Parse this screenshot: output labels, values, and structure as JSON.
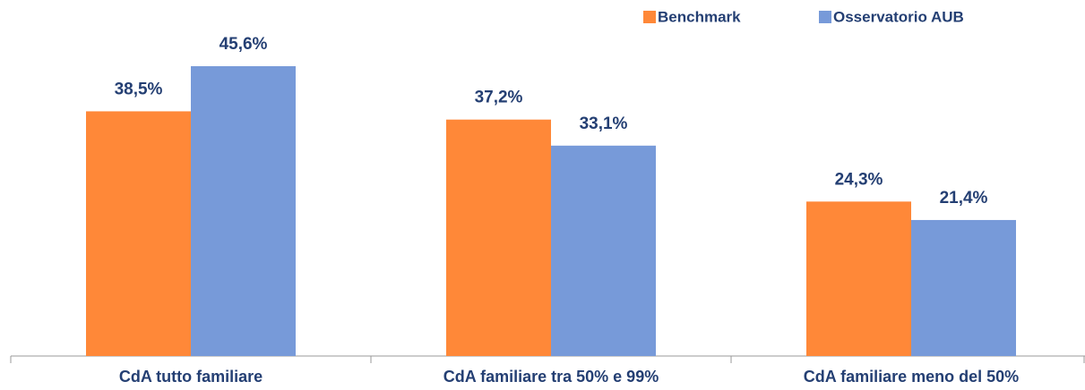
{
  "chart_data": {
    "type": "bar",
    "categories": [
      "CdA tutto familiare",
      "CdA familiare tra 50% e 99%",
      "CdA familiare meno del 50%"
    ],
    "series": [
      {
        "name": "Benchmark",
        "color": "#ff8838",
        "values": [
          38.5,
          37.2,
          24.3
        ],
        "value_labels": [
          "38,5%",
          "37,2%",
          "24,3%"
        ]
      },
      {
        "name": "Osservatorio AUB",
        "color": "#779ad9",
        "values": [
          45.6,
          33.1,
          21.4
        ],
        "value_labels": [
          "45,6%",
          "33,1%",
          "21,4%"
        ]
      }
    ],
    "legend": "top-right"
  }
}
